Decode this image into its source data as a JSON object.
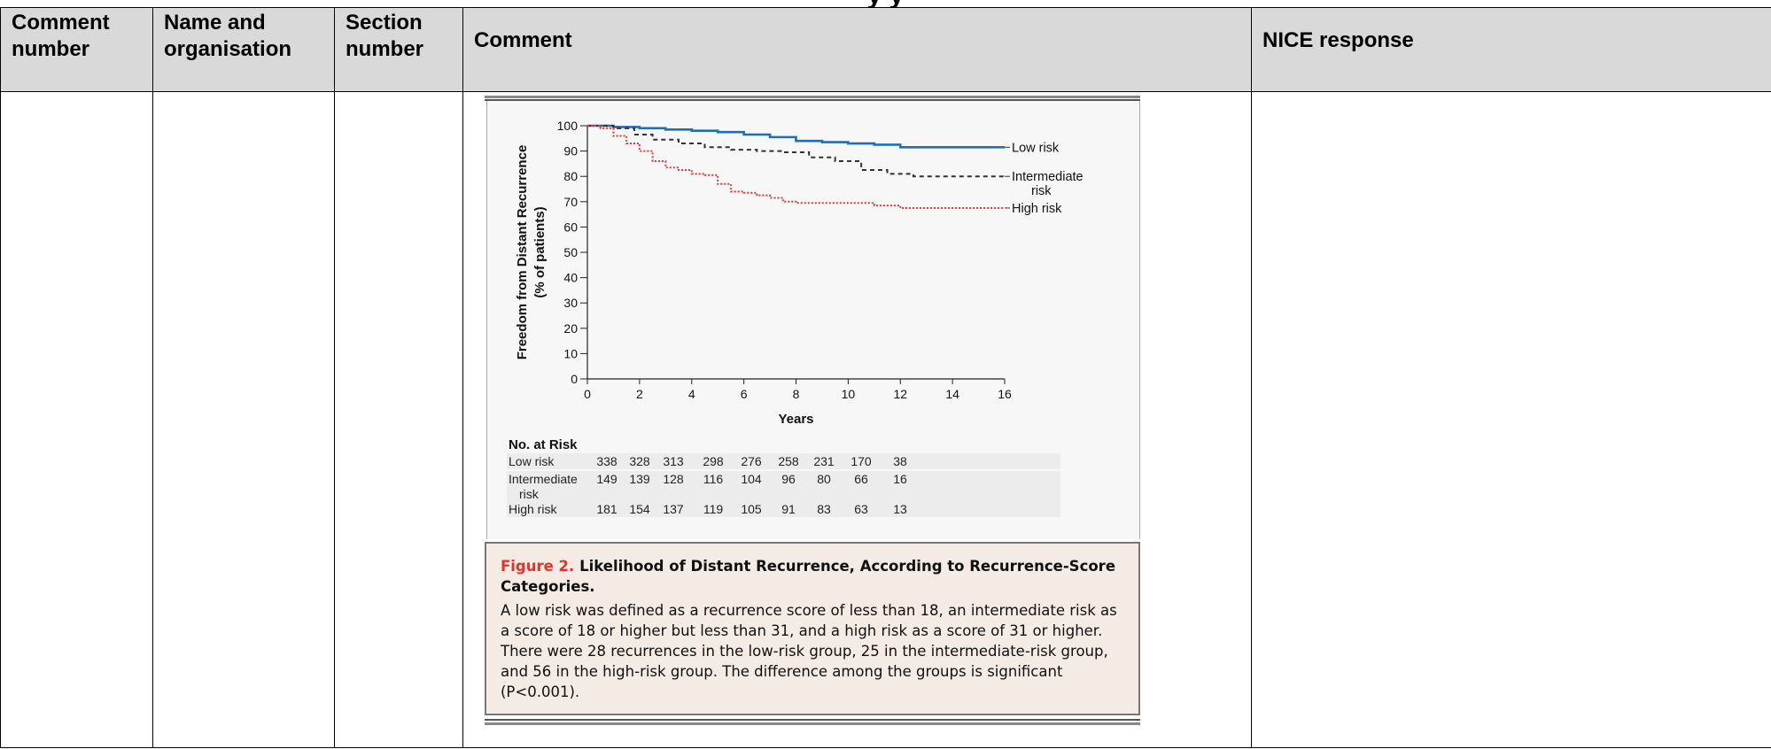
{
  "document": {
    "page_title_fragment": "y                                   y"
  },
  "table": {
    "headers": [
      {
        "line1": "Comment",
        "line2": "number"
      },
      {
        "line1": "Name and",
        "line2": "organisation"
      },
      {
        "line1": "Section",
        "line2": "number"
      },
      {
        "line1": "Comment",
        "line2": ""
      },
      {
        "line1": "NICE response",
        "line2": ""
      }
    ]
  },
  "figure": {
    "caption_label": "Figure 2.",
    "caption_title": "Likelihood of Distant Recurrence, According to Recurrence-Score Categories.",
    "caption_text": "A low risk was defined as a recurrence score of less than 18, an intermediate risk as a score of 18 or higher but less than 31, and a high risk as a score of 31 or higher. There were 28 recurrences in the low-risk group, 25 in the intermediate-risk group, and 56 in the high-risk group. The difference among the groups is significant (P<0.001).",
    "risk_table": {
      "title": "No. at Risk",
      "rows": [
        {
          "label": "Low risk",
          "label2": "",
          "values": [
            "338",
            "328",
            "313",
            "298",
            "276",
            "258",
            "231",
            "170",
            "38"
          ]
        },
        {
          "label": "Intermediate",
          "label2": "risk",
          "values": [
            "149",
            "139",
            "128",
            "116",
            "104",
            "96",
            "80",
            "66",
            "16"
          ]
        },
        {
          "label": "High risk",
          "label2": "",
          "values": [
            "181",
            "154",
            "137",
            "119",
            "105",
            "91",
            "83",
            "63",
            "13"
          ]
        }
      ]
    }
  },
  "chart_data": {
    "type": "line",
    "ylabel": "Freedom from Distant Recurrence",
    "ylabel2": "(% of patients)",
    "xlabel": "Years",
    "xlim": [
      0,
      16
    ],
    "ylim": [
      0,
      100
    ],
    "xticks": [
      0,
      2,
      4,
      6,
      8,
      10,
      12,
      14,
      16
    ],
    "yticks": [
      0,
      10,
      20,
      30,
      40,
      50,
      60,
      70,
      80,
      90,
      100
    ],
    "grid": false,
    "series": [
      {
        "name": "Low risk",
        "name2": "",
        "color": "#1f6fb5",
        "dash": "solid",
        "x": [
          0,
          1,
          2,
          3,
          4,
          5,
          6,
          7,
          8,
          9,
          10,
          11,
          12,
          13,
          14,
          15,
          16
        ],
        "y": [
          100,
          99.5,
          99,
          98.5,
          98,
          97.5,
          96.5,
          95.5,
          94,
          93.5,
          93,
          92.5,
          91.5,
          91.5,
          91.5,
          91.5,
          91.5
        ]
      },
      {
        "name": "Intermediate",
        "name2": "risk",
        "color": "#333333",
        "dash": "5,4",
        "x": [
          0,
          1,
          1.8,
          2.5,
          3.5,
          4.5,
          5.5,
          6.5,
          7.5,
          8.5,
          9.5,
          10.5,
          11.5,
          12.5,
          13.5,
          14.5,
          16
        ],
        "y": [
          100,
          99,
          96.5,
          94.5,
          93,
          91.5,
          90.5,
          90,
          89.5,
          87.5,
          86,
          82.5,
          81,
          80,
          80,
          80,
          80
        ]
      },
      {
        "name": "High risk",
        "name2": "",
        "color": "#e53935",
        "dash": "2,2",
        "x": [
          0,
          0.5,
          1,
          1.5,
          2,
          2.5,
          3,
          3.5,
          4,
          4.5,
          5,
          5.5,
          6,
          6.5,
          7,
          7.5,
          8,
          9,
          10,
          11,
          12,
          13,
          14,
          15,
          16
        ],
        "y": [
          100,
          99,
          96,
          93,
          90,
          86,
          83.5,
          82.5,
          81,
          80.5,
          77,
          74,
          73.5,
          72.5,
          71.5,
          70,
          69.5,
          69.5,
          69.5,
          68.5,
          67.5,
          67.5,
          67.5,
          67.5,
          67.5
        ]
      }
    ]
  }
}
